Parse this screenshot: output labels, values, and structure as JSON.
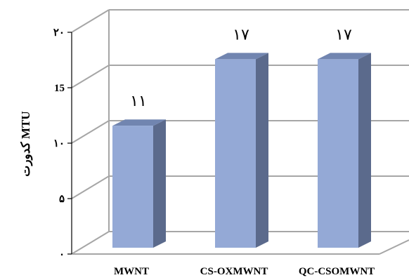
{
  "chart_data": {
    "type": "bar",
    "style": "3d-column",
    "categories": [
      "MWNT",
      "CS-OXMWNT",
      "QC-CSOMWNT"
    ],
    "series": [
      {
        "values": [
          11,
          17,
          17
        ]
      }
    ],
    "data_labels": [
      "۱۱",
      "۱۷",
      "۱۷"
    ],
    "title": "",
    "xlabel": "",
    "ylabel": "کدورت MTU",
    "ylim": [
      0,
      20
    ],
    "yticks": [
      0,
      5,
      10,
      15,
      20
    ],
    "ytick_labels": [
      "۰",
      "۵",
      "۱۰",
      "15",
      "۲۰"
    ],
    "grid": true,
    "legend": "none",
    "colors": {
      "bar_front": "#94a9d6",
      "bar_side": "#5b6a8c",
      "bar_top": "#7185b0",
      "grid": "#a6a6a6"
    }
  }
}
